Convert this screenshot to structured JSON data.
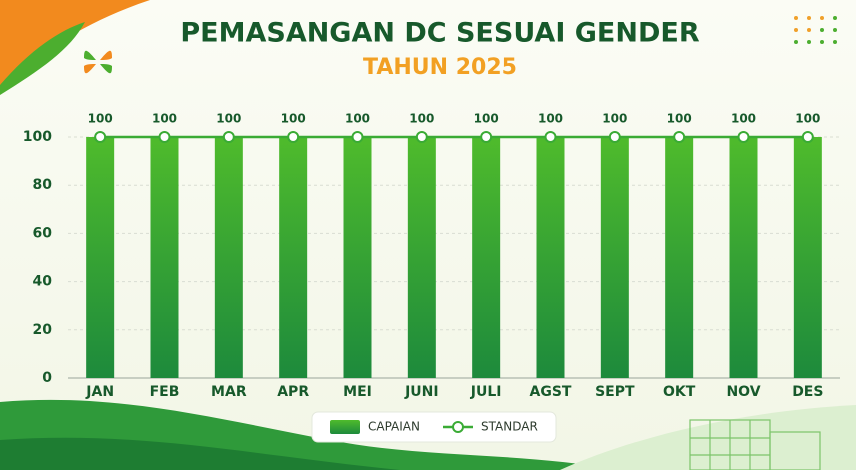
{
  "chart_data": {
    "type": "bar",
    "title": "PEMASANGAN DC SESUAI GENDER",
    "subtitle": "TAHUN 2025",
    "categories": [
      "JAN",
      "FEB",
      "MAR",
      "APR",
      "MEI",
      "JUNI",
      "JULI",
      "AGST",
      "SEPT",
      "OKT",
      "NOV",
      "DES"
    ],
    "series": [
      {
        "name": "CAPAIAN",
        "type": "bar",
        "color": "#3da833",
        "values": [
          100,
          100,
          100,
          100,
          100,
          100,
          100,
          100,
          100,
          100,
          100,
          100
        ]
      },
      {
        "name": "STANDAR",
        "type": "line",
        "color": "#3aab35",
        "values": [
          100,
          100,
          100,
          100,
          100,
          100,
          100,
          100,
          100,
          100,
          100,
          100
        ]
      }
    ],
    "ylim": [
      0,
      100
    ],
    "yticks": [
      0,
      20,
      40,
      60,
      80,
      100
    ],
    "grid": true,
    "legend": "bottom"
  }
}
